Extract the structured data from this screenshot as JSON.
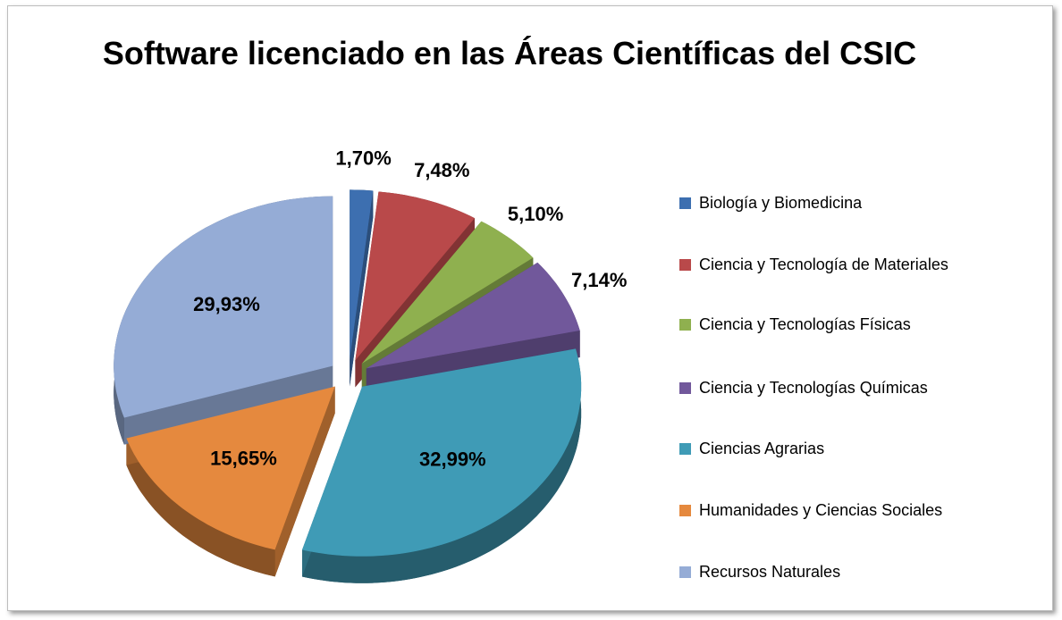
{
  "chart_data": {
    "type": "pie",
    "title": "Software licenciado en las Áreas Científicas del CSIC",
    "categories": [
      "Biología y Biomedicina",
      "Ciencia y Tecnología de Materiales",
      "Ciencia y Tecnologías Físicas",
      "Ciencia y Tecnologías Químicas",
      "Ciencias Agrarias",
      "Humanidades y Ciencias Sociales",
      "Recursos Naturales"
    ],
    "values": [
      1.7,
      7.48,
      5.1,
      7.14,
      32.99,
      15.65,
      29.93
    ],
    "value_labels": [
      "1,70%",
      "7,48%",
      "5,10%",
      "7,14%",
      "32,99%",
      "15,65%",
      "29,93%"
    ],
    "colors": [
      "#3d6fb0",
      "#b9494a",
      "#8fb04f",
      "#71589b",
      "#3f9bb6",
      "#e5893e",
      "#95acd6"
    ],
    "legend": "right"
  }
}
